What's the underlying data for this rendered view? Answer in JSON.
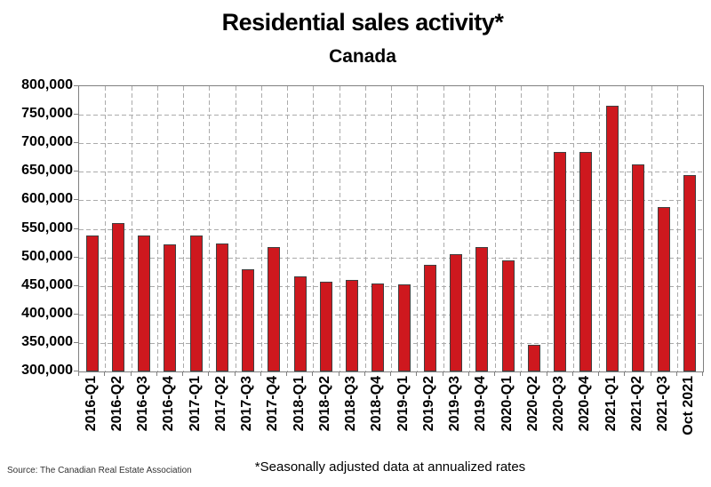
{
  "chart": {
    "title": "Residential sales activity*",
    "subtitle": "Canada",
    "source": "Source: The Canadian Real Estate Association",
    "footnote": "*Seasonally adjusted data at annualized rates"
  },
  "chart_data": {
    "type": "bar",
    "title": "Residential sales activity*",
    "subtitle": "Canada",
    "categories": [
      "2016-Q1",
      "2016-Q2",
      "2016-Q3",
      "2016-Q4",
      "2017-Q1",
      "2017-Q2",
      "2017-Q3",
      "2017-Q4",
      "2018-Q1",
      "2018-Q2",
      "2018-Q3",
      "2018-Q4",
      "2019-Q1",
      "2019-Q2",
      "2019-Q3",
      "2019-Q4",
      "2020-Q1",
      "2020-Q2",
      "2020-Q3",
      "2020-Q4",
      "2021-Q1",
      "2021-Q2",
      "2021-Q3",
      "Oct 2021"
    ],
    "values": [
      538000,
      560000,
      539000,
      523000,
      538000,
      524000,
      479000,
      518000,
      466000,
      457000,
      461000,
      454000,
      452000,
      487000,
      505000,
      518000,
      494000,
      347000,
      685000,
      684000,
      765000,
      663000,
      588000,
      645000
    ],
    "xlabel": "",
    "ylabel": "",
    "ylim": [
      300000,
      800000
    ],
    "ytick_step": 50000,
    "ytick_labels": [
      "800,000",
      "750,000",
      "700,000",
      "650,000",
      "600,000",
      "550,000",
      "500,000",
      "450,000",
      "400,000",
      "350,000",
      "300,000"
    ],
    "grid": true,
    "gridline_style": "dashed",
    "gridline_color": "#ababab",
    "plot_border_color": "#808080",
    "bar_color": "#ce181e",
    "bar_border_color": "#404040",
    "legend_position": "none",
    "source": "Source: The Canadian Real Estate Association",
    "footnote": "*Seasonally adjusted data at annualized rates"
  }
}
